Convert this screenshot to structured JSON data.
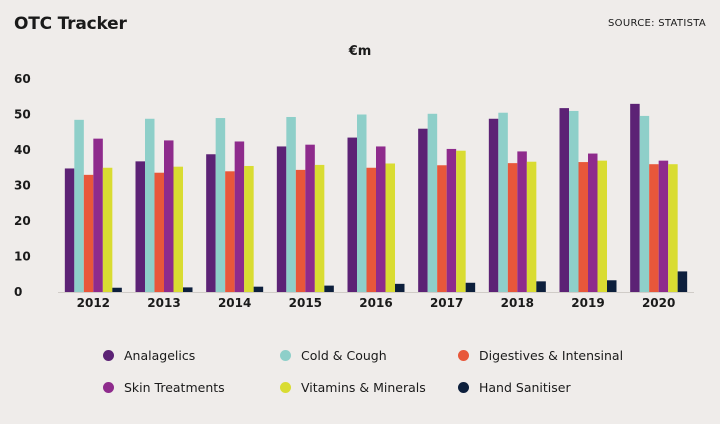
{
  "header": {
    "title": "OTC Tracker",
    "source": "SOURCE: STATISTA"
  },
  "chart_data": {
    "type": "bar",
    "ylabel": "€m",
    "ylim": [
      0,
      60
    ],
    "yticks": [
      0,
      10,
      20,
      30,
      40,
      50,
      60
    ],
    "grid": false,
    "legend_position": "bottom",
    "categories": [
      "2012",
      "2013",
      "2014",
      "2015",
      "2016",
      "2017",
      "2018",
      "2019",
      "2020"
    ],
    "series": [
      {
        "name": "Analagelics",
        "color": "#5c2275",
        "values": [
          34.8,
          36.8,
          38.8,
          41.0,
          43.5,
          46.0,
          48.8,
          51.8,
          53.0
        ]
      },
      {
        "name": "Cold & Cough",
        "color": "#8ecfc9",
        "values": [
          48.5,
          48.8,
          49.0,
          49.3,
          50.0,
          50.2,
          50.5,
          51.0,
          49.6
        ]
      },
      {
        "name": "Digestives & Intensinal",
        "color": "#e8573a",
        "values": [
          33.0,
          33.6,
          34.0,
          34.4,
          35.0,
          35.7,
          36.3,
          36.6,
          36.0
        ]
      },
      {
        "name": "Skin Treatments",
        "color": "#8e2b8c",
        "values": [
          43.2,
          42.7,
          42.4,
          41.5,
          41.0,
          40.3,
          39.6,
          39.0,
          37.0
        ]
      },
      {
        "name": "Vitamins & Minerals",
        "color": "#d9dc32",
        "values": [
          35.0,
          35.3,
          35.5,
          35.8,
          36.2,
          39.8,
          36.7,
          37.0,
          36.0
        ]
      },
      {
        "name": "Hand Sanitiser",
        "color": "#0d1f3c",
        "values": [
          1.2,
          1.3,
          1.5,
          1.8,
          2.3,
          2.6,
          3.0,
          3.3,
          5.8
        ]
      }
    ]
  }
}
